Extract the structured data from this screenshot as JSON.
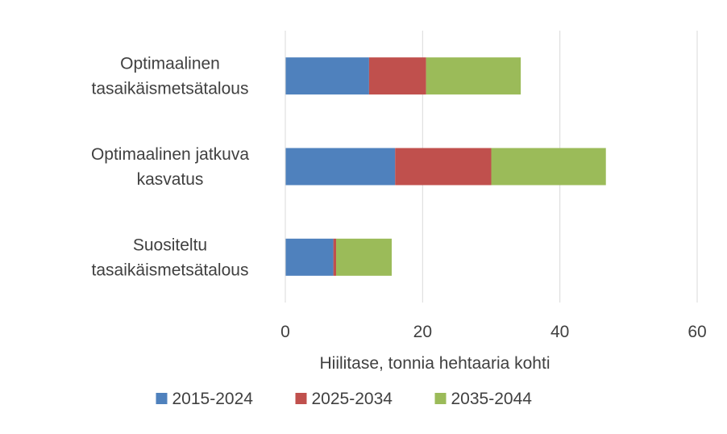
{
  "chart_data": {
    "type": "bar",
    "orientation": "horizontal",
    "stacked": true,
    "categories": [
      [
        "Optimaalinen",
        "tasaikäismetsätalous"
      ],
      [
        "Optimaalinen jatkuva",
        "kasvatus"
      ],
      [
        "Suositeltu",
        "tasaikäismetsätalous"
      ]
    ],
    "series": [
      {
        "name": "2015-2024",
        "color": "#4F81BD",
        "values": [
          12.2,
          16.0,
          7.0
        ]
      },
      {
        "name": "2025-2034",
        "color": "#C0504D",
        "values": [
          8.3,
          14.0,
          0.4
        ]
      },
      {
        "name": "2035-2044",
        "color": "#9BBB59",
        "values": [
          13.8,
          16.7,
          8.1
        ]
      }
    ],
    "xlabel": "Hiilitase, tonnia hehtaaria kohti",
    "ylabel": "",
    "xlim": [
      0,
      60
    ],
    "xticks": [
      0,
      20,
      40,
      60
    ],
    "grid": "vertical",
    "legend_position": "bottom"
  }
}
